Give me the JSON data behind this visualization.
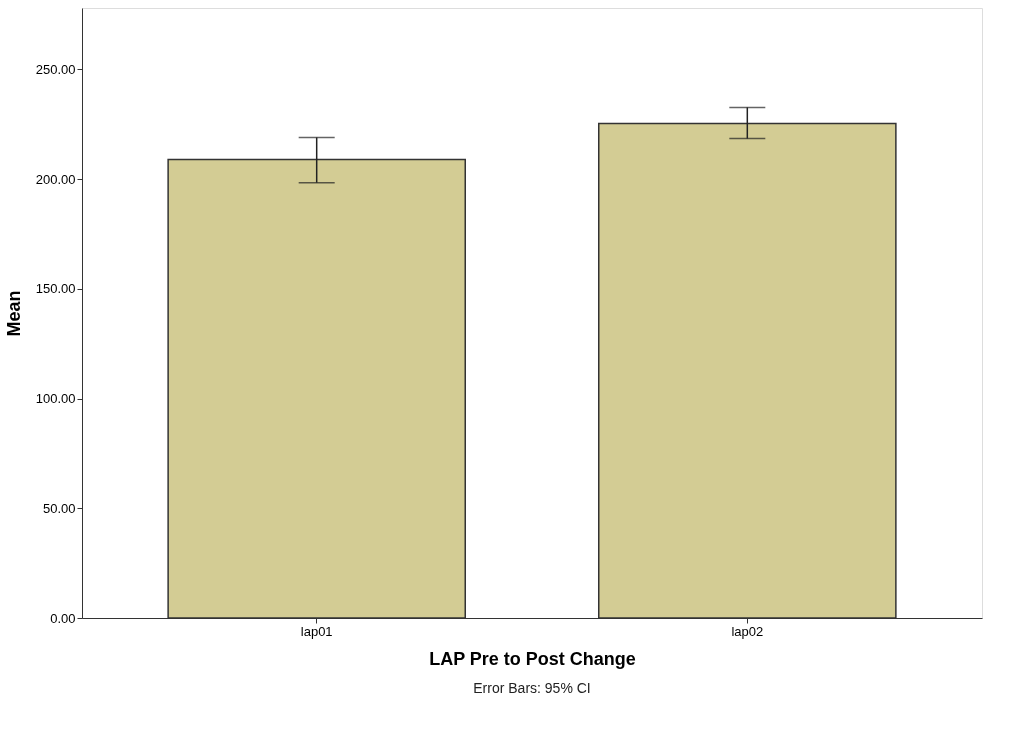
{
  "chart_data": {
    "type": "bar",
    "xlabel": "LAP Pre to Post Change",
    "ylabel": "Mean",
    "categories": [
      "lap01",
      "lap02"
    ],
    "values": [
      208.9,
      225.4
    ],
    "errors": [
      [
        198.4,
        219.0
      ],
      [
        218.5,
        232.7
      ]
    ],
    "color": "#d3cc94",
    "ylim": [
      0,
      278
    ],
    "yticks": [
      {
        "value": 0,
        "label": "0.00"
      },
      {
        "value": 50,
        "label": "50.00"
      },
      {
        "value": 100,
        "label": "100.00"
      },
      {
        "value": 150,
        "label": "150.00"
      },
      {
        "value": 200,
        "label": "200.00"
      },
      {
        "value": 250,
        "label": "250.00"
      }
    ],
    "annotations": [
      "Error Bars: 95% CI"
    ],
    "grid": false
  }
}
